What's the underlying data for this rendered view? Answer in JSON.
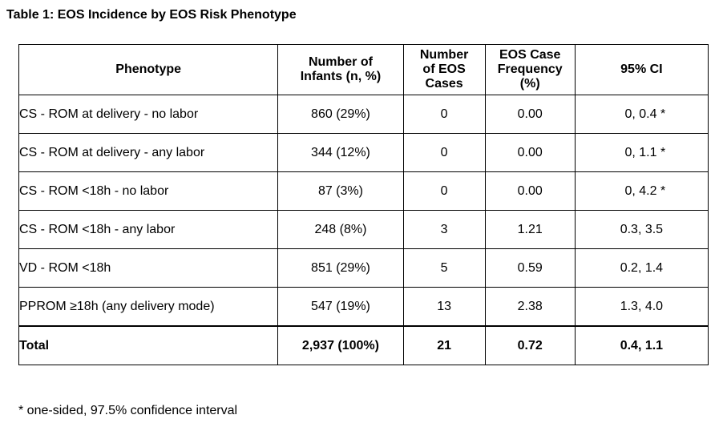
{
  "title": "Table 1: EOS Incidence by EOS Risk Phenotype",
  "table": {
    "headers": {
      "phenotype": "Phenotype",
      "infants": "Number of\nInfants (n, %)",
      "cases": "Number\nof EOS\nCases",
      "frequency": "EOS Case\nFrequency\n(%)",
      "ci": "95% CI"
    },
    "rows": [
      {
        "phenotype": "CS - ROM at delivery - no labor",
        "infants": "860 (29%)",
        "cases": "0",
        "frequency": "0.00",
        "ci": "  0, 0.4 *"
      },
      {
        "phenotype": "CS - ROM at delivery - any labor",
        "infants": "344 (12%)",
        "cases": "0",
        "frequency": "0.00",
        "ci": "  0, 1.1 *"
      },
      {
        "phenotype": "CS - ROM <18h - no labor",
        "infants": "87 (3%)",
        "cases": "0",
        "frequency": "0.00",
        "ci": "  0, 4.2 *"
      },
      {
        "phenotype": "CS - ROM <18h - any labor",
        "infants": "248 (8%)",
        "cases": "3",
        "frequency": "1.21",
        "ci": "0.3, 3.5"
      },
      {
        "phenotype": "VD - ROM <18h",
        "infants": "851 (29%)",
        "cases": "5",
        "frequency": "0.59",
        "ci": "0.2, 1.4"
      },
      {
        "phenotype": "PPROM ≥18h (any delivery mode)",
        "infants": "547 (19%)",
        "cases": "13",
        "frequency": "2.38",
        "ci": "1.3, 4.0"
      }
    ],
    "total": {
      "phenotype": "Total",
      "infants": "2,937 (100%)",
      "cases": "21",
      "frequency": "0.72",
      "ci": "0.4, 1.1"
    }
  },
  "footnote": "* one-sided, 97.5% confidence interval"
}
